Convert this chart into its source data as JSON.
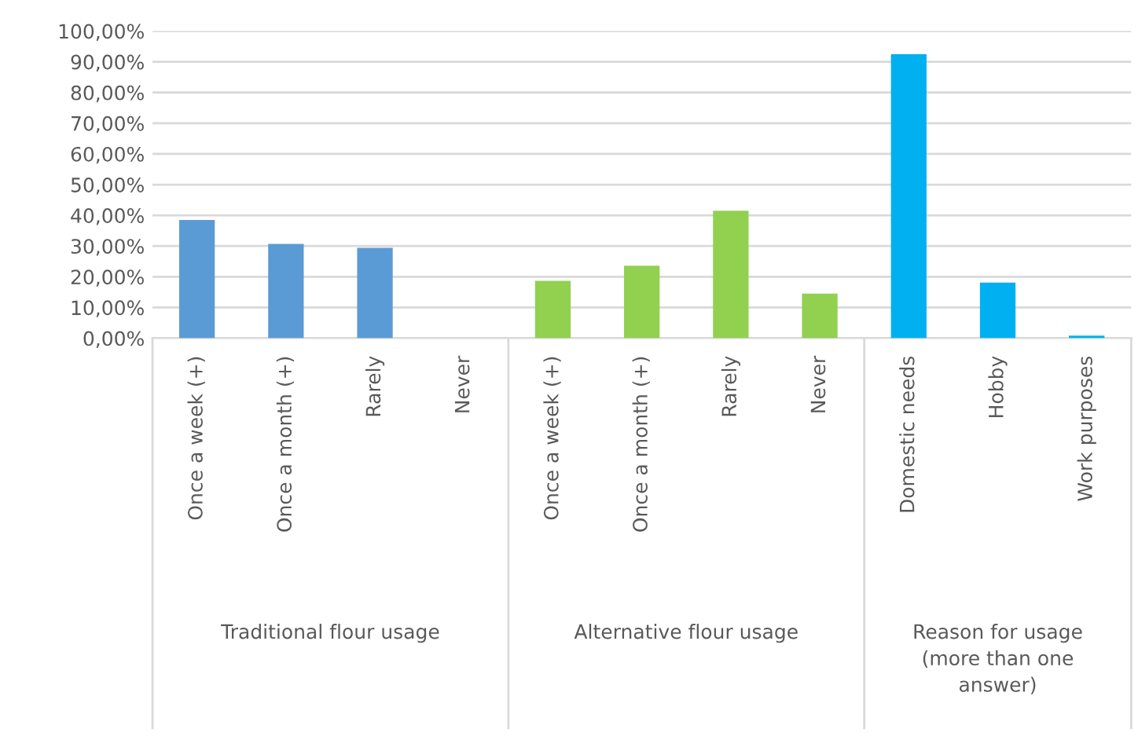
{
  "chart_data": {
    "type": "bar",
    "categories": [
      "Once a week (+)",
      "Once a month (+)",
      "Rarely",
      "Never",
      "Once a week (+)",
      "Once a month (+)",
      "Rarely",
      "Never",
      "Domestic needs",
      "Hobby",
      "Work purposes"
    ],
    "values": [
      38.5,
      30.7,
      29.4,
      0,
      18.7,
      23.6,
      41.5,
      14.5,
      92.5,
      18.1,
      0.8
    ],
    "colors": [
      "#5b9bd5",
      "#5b9bd5",
      "#5b9bd5",
      "#5b9bd5",
      "#92d050",
      "#92d050",
      "#92d050",
      "#92d050",
      "#00b0f0",
      "#00b0f0",
      "#00b0f0"
    ],
    "annotations": [
      "Traditional flour usage",
      "Alternative flour usage",
      "Reason for usage (more than one answer)"
    ],
    "ylim": [
      0,
      100
    ],
    "yticks": [
      {
        "value": 0,
        "label": "0,00%"
      },
      {
        "value": 10,
        "label": "10,00%"
      },
      {
        "value": 20,
        "label": "20,00%"
      },
      {
        "value": 30,
        "label": "30,00%"
      },
      {
        "value": 40,
        "label": "40,00%"
      },
      {
        "value": 50,
        "label": "50,00%"
      },
      {
        "value": 60,
        "label": "60,00%"
      },
      {
        "value": 70,
        "label": "70,00%"
      },
      {
        "value": 80,
        "label": "80,00%"
      },
      {
        "value": 90,
        "label": "90,00%"
      },
      {
        "value": 100,
        "label": "100,00%"
      }
    ],
    "grid": "y",
    "legend": false
  }
}
